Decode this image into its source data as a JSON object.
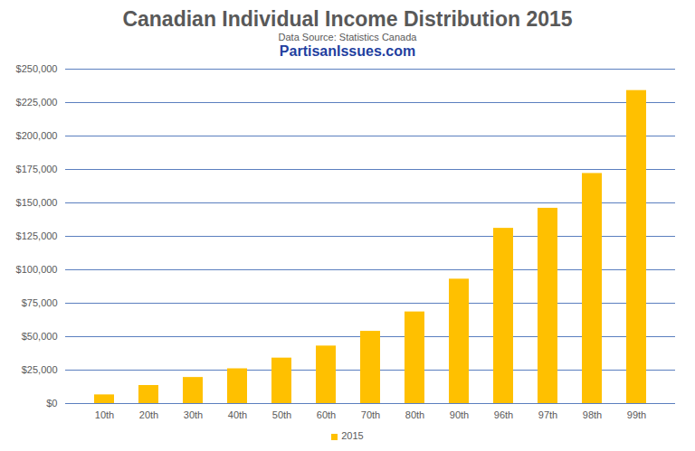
{
  "chart_data": {
    "type": "bar",
    "title": "Canadian Individual Income Distribution 2015",
    "subtitle": "Data Source: Statistics Canada",
    "annotations": [
      "PartisanIssues.com"
    ],
    "categories": [
      "10th",
      "20th",
      "30th",
      "40th",
      "50th",
      "60th",
      "70th",
      "80th",
      "90th",
      "96th",
      "97th",
      "98th",
      "99th"
    ],
    "series": [
      {
        "name": "2015",
        "color": "#ffc000",
        "values": [
          6500,
          13500,
          19500,
          26000,
          34000,
          43000,
          54000,
          68500,
          93000,
          131000,
          146000,
          172000,
          234000
        ]
      }
    ],
    "ylim": [
      0,
      250000
    ],
    "yticks": [
      {
        "value": 0,
        "label": "$0"
      },
      {
        "value": 25000,
        "label": "$25,000"
      },
      {
        "value": 50000,
        "label": "$50,000"
      },
      {
        "value": 75000,
        "label": "$75,000"
      },
      {
        "value": 100000,
        "label": "$100,000"
      },
      {
        "value": 125000,
        "label": "$125,000"
      },
      {
        "value": 150000,
        "label": "$150,000"
      },
      {
        "value": 175000,
        "label": "$175,000"
      },
      {
        "value": 200000,
        "label": "$200,000"
      },
      {
        "value": 225000,
        "label": "$225,000"
      },
      {
        "value": 250000,
        "label": "$250,000"
      }
    ],
    "grid": true,
    "legend": "bottom"
  }
}
